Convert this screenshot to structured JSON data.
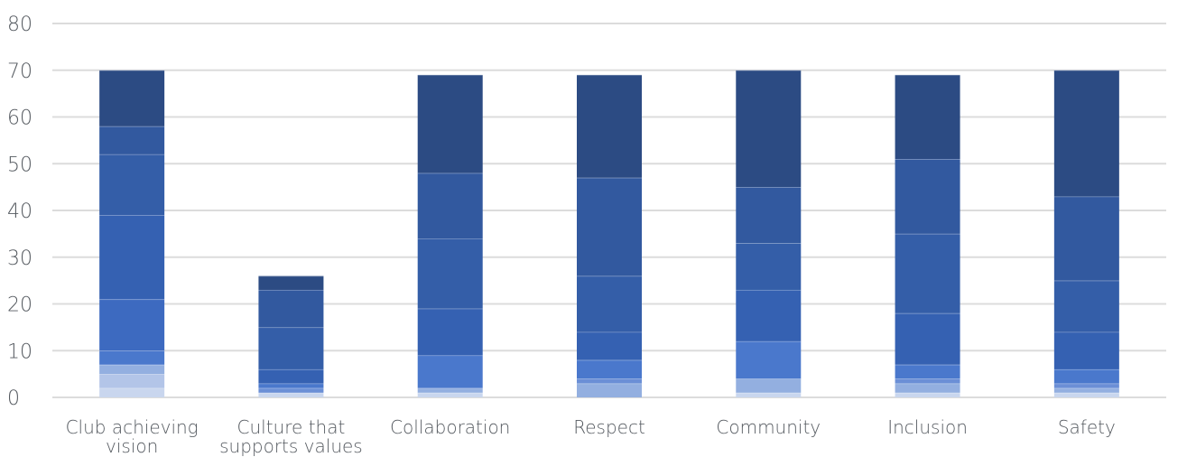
{
  "chart_data": {
    "type": "bar",
    "stacked": true,
    "title": "",
    "xlabel": "",
    "ylabel": "",
    "ylim": [
      0,
      80
    ],
    "yticks": [
      "0",
      "10",
      "20",
      "30",
      "40",
      "50",
      "60",
      "70",
      "80"
    ],
    "grid": true,
    "categories": [
      {
        "lines": [
          "Club achieving",
          "vision"
        ]
      },
      {
        "lines": [
          "Culture that",
          "supports values"
        ]
      },
      {
        "lines": [
          "Collaboration"
        ]
      },
      {
        "lines": [
          "Respect"
        ]
      },
      {
        "lines": [
          "Community"
        ]
      },
      {
        "lines": [
          "Inclusion"
        ]
      },
      {
        "lines": [
          "Safety"
        ]
      }
    ],
    "series": [
      {
        "color": "#c9d6ee",
        "values": [
          2,
          1,
          1,
          0,
          1,
          1,
          1
        ]
      },
      {
        "color": "#b3c5e8",
        "values": [
          3,
          0,
          0,
          0,
          0,
          0,
          0
        ]
      },
      {
        "color": "#93afe0",
        "values": [
          2,
          0,
          1,
          3,
          3,
          2,
          1
        ]
      },
      {
        "color": "#6b8fd6",
        "values": [
          0,
          1,
          0,
          1,
          0,
          1,
          1
        ]
      },
      {
        "color": "#4a78cc",
        "values": [
          3,
          1,
          7,
          4,
          8,
          3,
          3
        ]
      },
      {
        "color": "#3d6ac0",
        "values": [
          11,
          0,
          0,
          0,
          0,
          0,
          0
        ]
      },
      {
        "color": "#3561b2",
        "values": [
          18,
          3,
          10,
          6,
          11,
          11,
          8
        ]
      },
      {
        "color": "#345ea8",
        "values": [
          13,
          9,
          15,
          12,
          10,
          17,
          11
        ]
      },
      {
        "color": "#32599f",
        "values": [
          6,
          8,
          14,
          21,
          12,
          16,
          18
        ]
      },
      {
        "color": "#2f5290",
        "values": [
          0,
          0,
          0,
          0,
          0,
          0,
          0
        ]
      },
      {
        "color": "#2c4b83",
        "values": [
          12,
          3,
          21,
          22,
          25,
          18,
          27
        ]
      }
    ]
  }
}
